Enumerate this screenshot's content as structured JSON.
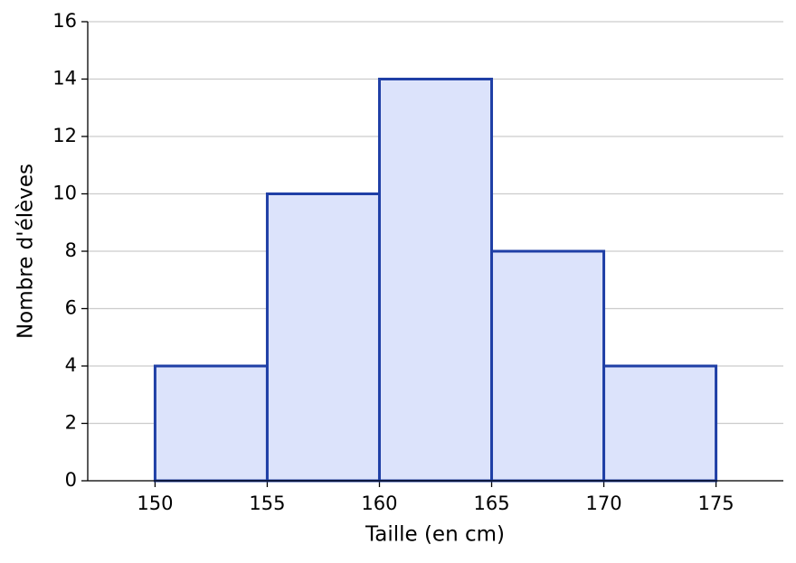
{
  "chart_data": {
    "type": "histogram",
    "x_label": "Taille (en cm)",
    "y_label": "Nombre d'élèves",
    "bins": [
      150,
      155,
      160,
      165,
      170,
      175
    ],
    "counts": [
      4,
      10,
      14,
      8,
      4
    ],
    "color": "#dce3fb",
    "edge_color": "#1f3fa6",
    "xlim": [
      147,
      178
    ],
    "xticks": [
      150,
      155,
      160,
      165,
      170,
      175
    ],
    "ylim": [
      0,
      16
    ],
    "yticks": [
      0,
      2,
      4,
      6,
      8,
      10,
      12,
      14,
      16
    ],
    "grid": true
  }
}
